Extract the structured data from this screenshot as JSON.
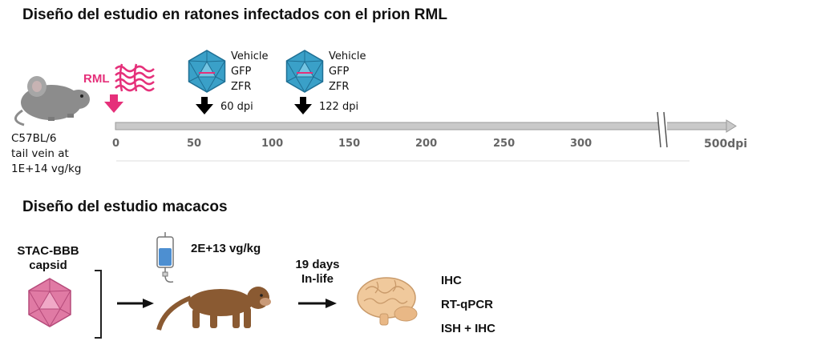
{
  "mouse_study": {
    "title": "Diseño del estudio en ratones infectados con el prion RML",
    "mouse_label_lines": [
      "C57BL/6",
      "tail vein at",
      "1E+14 vg/kg"
    ],
    "rml_label": "RML",
    "treatments": [
      {
        "items": [
          "Vehicle",
          "GFP",
          "ZFR"
        ],
        "dpi_label": "60 dpi"
      },
      {
        "items": [
          "Vehicle",
          "GFP",
          "ZFR"
        ],
        "dpi_label": "122 dpi"
      }
    ],
    "timeline": {
      "ticks": [
        "0",
        "50",
        "100",
        "150",
        "200",
        "250",
        "300"
      ],
      "end_label": "500dpi"
    }
  },
  "macaque_study": {
    "title": "Diseño del estudio macacos",
    "capsid_label_lines": [
      "STAC-BBB",
      "capsid"
    ],
    "dose_label": "2E+13 vg/kg",
    "inlife_label_lines": [
      "19 days",
      "In-life"
    ],
    "assays": [
      "IHC",
      "RT-qPCR",
      "ISH + IHC"
    ]
  },
  "colors": {
    "accent_pink": "#e5307a",
    "virus_blue": "#3aa0c8",
    "capsid_pink": "#e07aa4",
    "timeline_gray": "#c9c9c9",
    "mouse_gray": "#8c8c8c",
    "monkey_brown": "#8a5a32",
    "brain_tan": "#f0c99c"
  }
}
